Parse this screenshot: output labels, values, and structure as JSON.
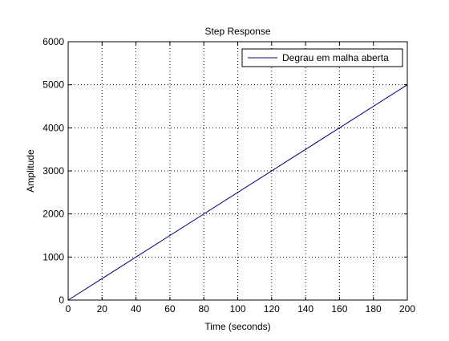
{
  "chart_data": {
    "type": "line",
    "title": "Step Response",
    "xlabel": "Time (seconds)",
    "ylabel": "Amplitude",
    "xlim": [
      0,
      200
    ],
    "ylim": [
      0,
      6000
    ],
    "xticks": [
      0,
      20,
      40,
      60,
      80,
      100,
      120,
      140,
      160,
      180,
      200
    ],
    "yticks": [
      0,
      1000,
      2000,
      3000,
      4000,
      5000,
      6000
    ],
    "grid": true,
    "legend_position": "top-right",
    "series": [
      {
        "name": "Degrau em malha aberta",
        "color": "#00007f",
        "x": [
          0,
          200
        ],
        "y": [
          0,
          5000
        ]
      }
    ]
  }
}
